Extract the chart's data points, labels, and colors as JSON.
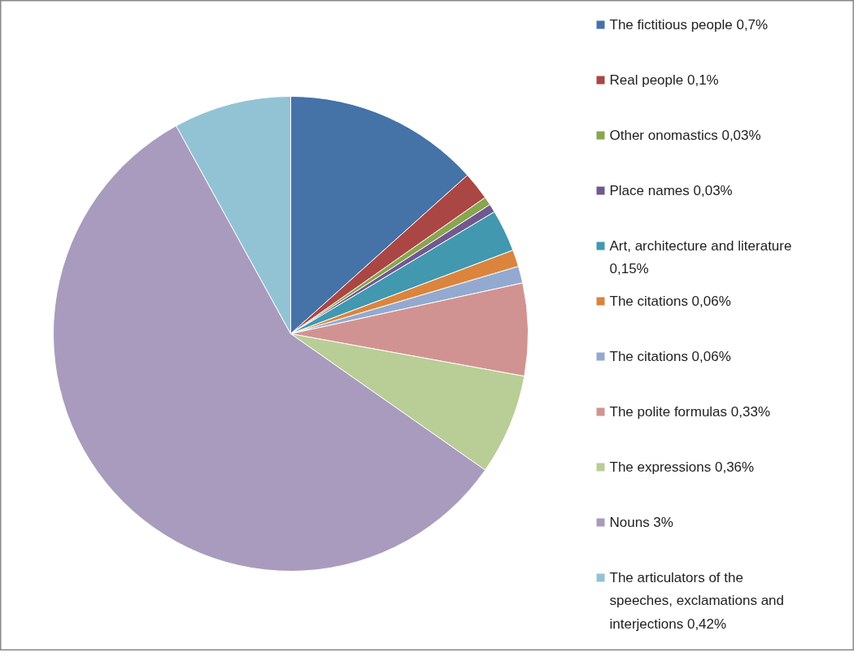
{
  "chart_data": {
    "type": "pie",
    "legend": "right",
    "categories": [
      "The fictitious people",
      "Real people",
      "Other onomastics",
      "Place names",
      "Art, architecture and literature",
      "The citations",
      "The citations",
      "The polite formulas",
      "The expressions",
      "Nouns",
      "The articulators of the speeches, exclamations and interjections"
    ],
    "values": [
      0.7,
      0.1,
      0.03,
      0.03,
      0.15,
      0.06,
      0.06,
      0.33,
      0.36,
      3,
      0.42
    ],
    "value_labels": [
      "0,7%",
      "0,1%",
      "0,03%",
      "0,03%",
      "0,15%",
      "0,06%",
      "0,06%",
      "0,33%",
      "0,36%",
      "3%",
      "0,42%"
    ],
    "colors": [
      "#4572a7",
      "#aa4643",
      "#89a54e",
      "#71588f",
      "#4198af",
      "#db843d",
      "#93a9cf",
      "#d19392",
      "#b9cd96",
      "#a99bbd",
      "#92c3d4"
    ]
  }
}
